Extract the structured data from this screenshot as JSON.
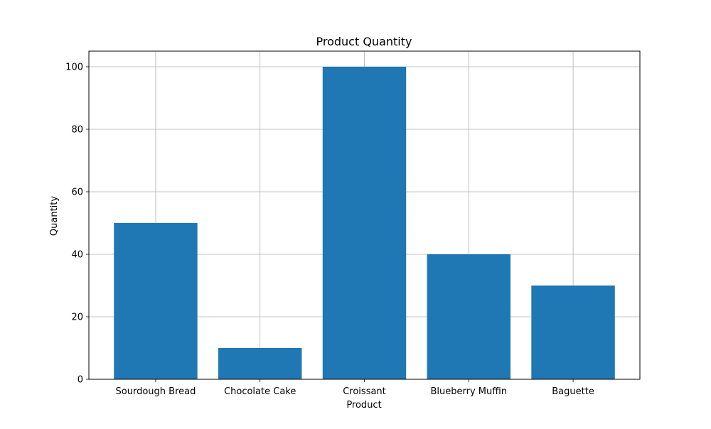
{
  "chart_data": {
    "type": "bar",
    "title": "Product Quantity",
    "xlabel": "Product",
    "ylabel": "Quantity",
    "categories": [
      "Sourdough Bread",
      "Chocolate Cake",
      "Croissant",
      "Blueberry Muffin",
      "Baguette"
    ],
    "values": [
      50,
      10,
      100,
      40,
      30
    ],
    "ylim": [
      0,
      105
    ],
    "yticks": [
      0,
      20,
      40,
      60,
      80,
      100
    ],
    "grid": true,
    "bar_color": "#1f77b4",
    "grid_color": "#b0b0b0"
  }
}
